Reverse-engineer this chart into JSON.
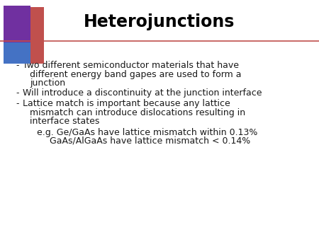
{
  "title": "Heterojunctions",
  "title_fontsize": 17,
  "title_fontweight": "bold",
  "title_color": "#000000",
  "bg_color": "#ffffff",
  "text_color": "#1a1a1a",
  "bullet_points": [
    "Two different semiconductor materials that have\n    different energy band gapes are used to form a\n    junction",
    "Will introduce a discontinuity at the junction interface",
    "Lattice match is important because any lattice\n    mismatch can introduce dislocations resulting in\n    interface states"
  ],
  "sub_bullets": [
    "e.g. Ge/GaAs have lattice mismatch within 0.13%",
    "      GaAs/AlGaAs have lattice mismatch < 0.14%"
  ],
  "bullet_fontsize": 9.0,
  "sub_bullet_fontsize": 9.0,
  "separator_color": "#c0504d",
  "logo_purple": "#7030a0",
  "logo_blue": "#4472c4",
  "logo_red": "#c0504d"
}
